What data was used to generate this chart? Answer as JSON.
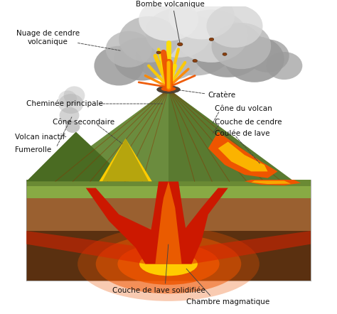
{
  "background_color": "#ffffff",
  "labels": {
    "bombe": "Bombe volcanique",
    "nuage": "Nuage de cendre\nvolcanique",
    "cheminee": "Cheminée principale",
    "cratere": "Cratère",
    "cone_sec": "Cône secondaire",
    "cone_volcan": "Cône du volcan",
    "volcan_inactif": "Volcan inactif",
    "fumerolle": "Fumerolle",
    "couche_cendre": "Couche de cendre",
    "coulee_lave": "Coulée de lave",
    "couche_lave_sol": "Couche de lave solidifiée",
    "chambre": "Chambre magmatique"
  },
  "colors": {
    "cloud_dark": "#9a9a9a",
    "cloud_mid": "#b8b8b8",
    "cloud_light": "#d5d5d5",
    "cloud_white": "#e8e8e8",
    "volcano_green": "#6b8c3e",
    "volcano_green2": "#5a7a30",
    "volcano_dark_green": "#4a6b22",
    "lava_red": "#cc1800",
    "lava_red2": "#dd2200",
    "lava_orange": "#ee5500",
    "lava_orange2": "#ff8800",
    "lava_yellow": "#ffcc00",
    "lava_yellow2": "#ffe000",
    "magma_glow": "#ffaa00",
    "earth_dark": "#5a3010",
    "earth_mid": "#7a4a20",
    "earth_brown": "#9a6030",
    "earth_light": "#c08040",
    "ground_green_top": "#88aa44",
    "ground_green_side": "#6a8a34",
    "smoke_gray": "#b0b0b0",
    "smoke_light": "#cccccc",
    "bomb_brown": "#8b4010",
    "label_text": "#000000"
  },
  "figsize": [
    4.74,
    4.42
  ],
  "dpi": 100
}
